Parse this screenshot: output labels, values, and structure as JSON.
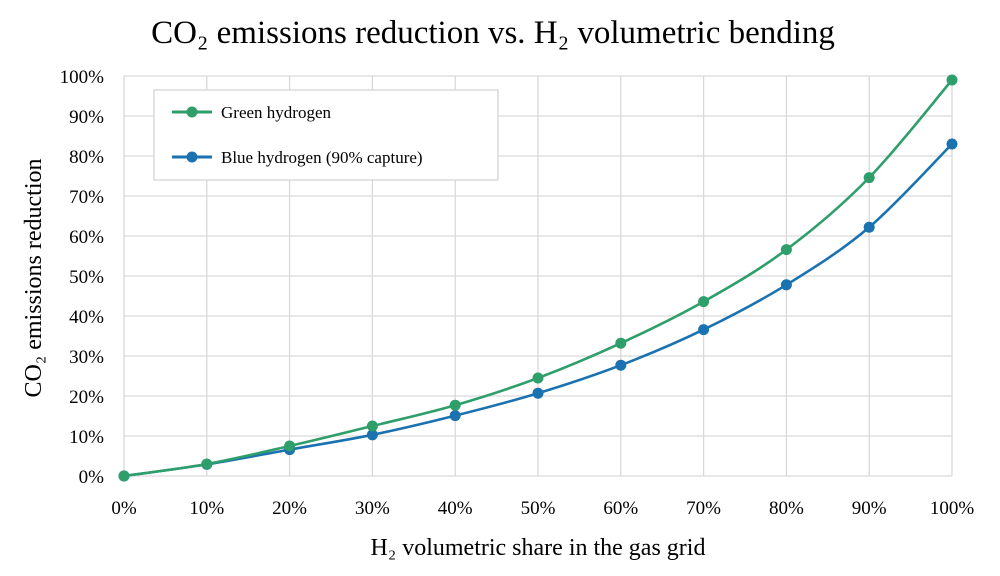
{
  "chart_data": {
    "type": "line",
    "title": "CO₂ emissions reduction vs. H₂ volumetric bending",
    "xlabel": "H₂ volumetric share in the gas grid",
    "ylabel": "CO₂ emissions reduction",
    "x": [
      0,
      10,
      20,
      30,
      40,
      50,
      60,
      70,
      80,
      90,
      100
    ],
    "x_tick_labels": [
      "0%",
      "10%",
      "20%",
      "30%",
      "40%",
      "50%",
      "60%",
      "70%",
      "80%",
      "90%",
      "100%"
    ],
    "y_tick_labels": [
      "0%",
      "10%",
      "20%",
      "30%",
      "40%",
      "50%",
      "60%",
      "70%",
      "80%",
      "90%",
      "100%"
    ],
    "xlim": [
      0,
      100
    ],
    "ylim": [
      0,
      100
    ],
    "grid": true,
    "legend_position": "top-left",
    "series": [
      {
        "name": "Green hydrogen",
        "color": "#2e9e6b",
        "values": [
          0,
          3,
          7.5,
          12.5,
          17.7,
          24.5,
          33.2,
          43.6,
          56.6,
          74.6,
          99
        ]
      },
      {
        "name": "Blue hydrogen (90% capture)",
        "color": "#1a72b0",
        "values": [
          0,
          2.9,
          6.6,
          10.3,
          15.1,
          20.7,
          27.7,
          36.6,
          47.8,
          62.2,
          83
        ]
      }
    ]
  }
}
